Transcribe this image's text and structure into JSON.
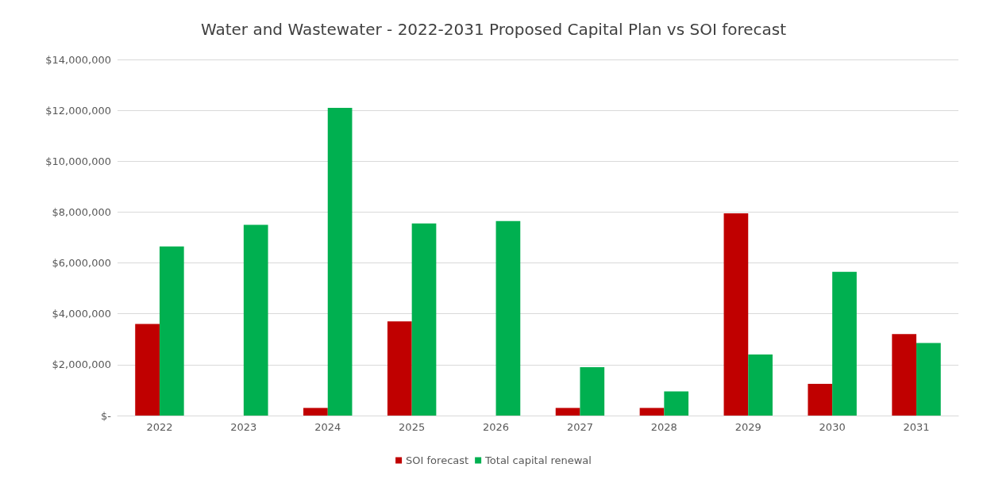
{
  "chart_data": {
    "type": "bar",
    "title": "Water and Wastewater - 2022-2031 Proposed Capital Plan vs SOI forecast",
    "categories": [
      "2022",
      "2023",
      "2024",
      "2025",
      "2026",
      "2027",
      "2028",
      "2029",
      "2030",
      "2031"
    ],
    "series": [
      {
        "name": "SOI forecast",
        "color": "#c00000",
        "values": [
          3600000,
          0,
          300000,
          3700000,
          0,
          300000,
          300000,
          7950000,
          1250000,
          3200000
        ]
      },
      {
        "name": "Total capital renewal",
        "color": "#00b050",
        "values": [
          6650000,
          7500000,
          12100000,
          7550000,
          7650000,
          1900000,
          950000,
          2400000,
          5650000,
          2850000
        ]
      }
    ],
    "ylim": [
      0,
      14000000
    ],
    "yticks": [
      {
        "value": 0,
        "label": "$-"
      },
      {
        "value": 2000000,
        "label": "$2,000,000"
      },
      {
        "value": 4000000,
        "label": "$4,000,000"
      },
      {
        "value": 6000000,
        "label": "$6,000,000"
      },
      {
        "value": 8000000,
        "label": "$8,000,000"
      },
      {
        "value": 10000000,
        "label": "$10,000,000"
      },
      {
        "value": 12000000,
        "label": "$12,000,000"
      },
      {
        "value": 14000000,
        "label": "$14,000,000"
      }
    ],
    "grid": "y",
    "legend": "bottom"
  }
}
